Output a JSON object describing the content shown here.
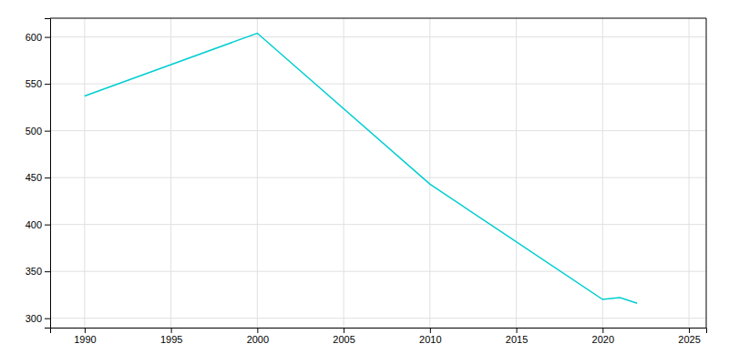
{
  "chart_data": {
    "type": "line",
    "x": [
      1990,
      2000,
      2010,
      2020,
      2021,
      2022
    ],
    "values": [
      537,
      604,
      443,
      320,
      322,
      316
    ],
    "color": "#00CED1",
    "xlim": [
      1988,
      2026
    ],
    "ylim": [
      290,
      620
    ],
    "xticks": [
      1990,
      1995,
      2000,
      2005,
      2010,
      2015,
      2020,
      2025
    ],
    "yticks": [
      300,
      350,
      400,
      450,
      500,
      550,
      600
    ],
    "grid": true
  }
}
